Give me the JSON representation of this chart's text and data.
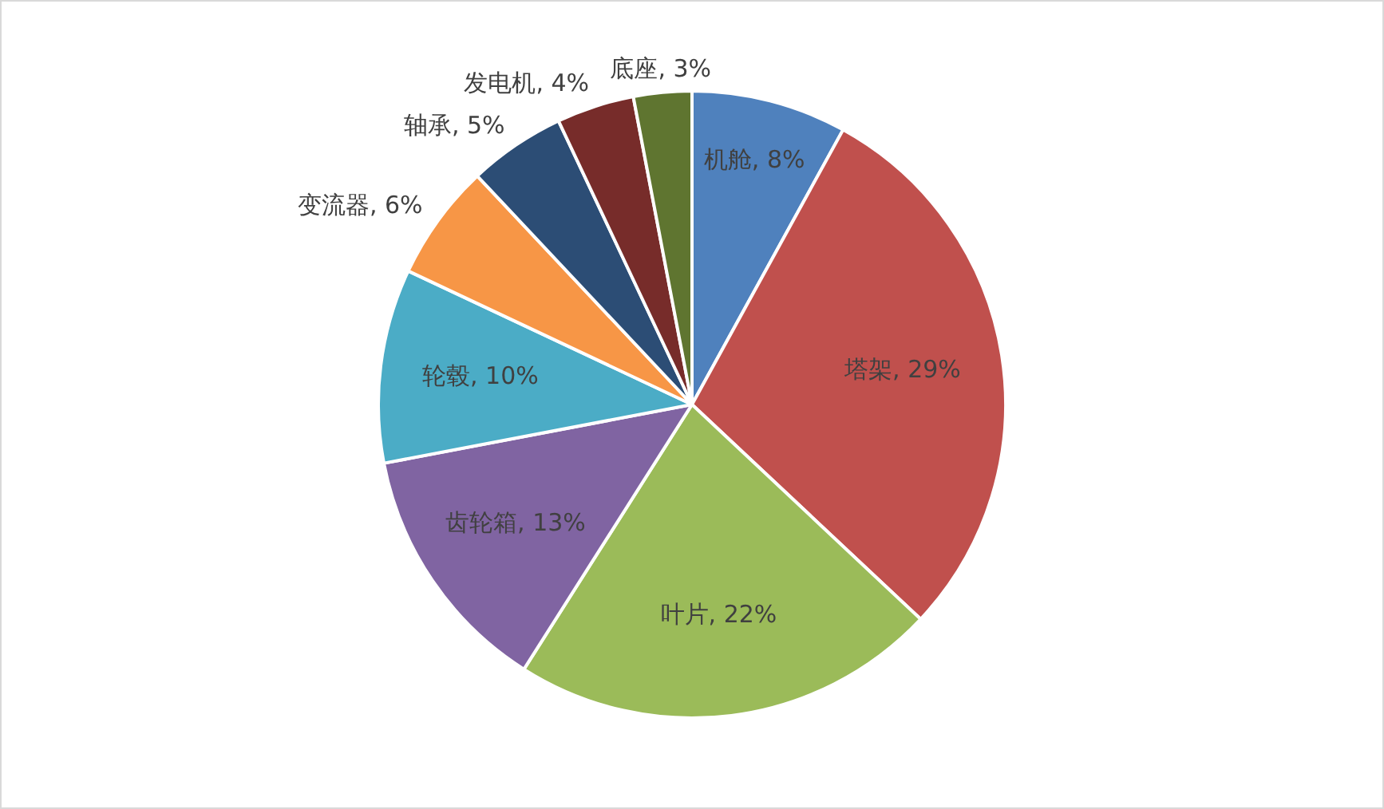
{
  "chart_data": {
    "type": "pie",
    "categories": [
      "机舱",
      "塔架",
      "叶片",
      "齿轮箱",
      "轮毂",
      "变流器",
      "轴承",
      "发电机",
      "底座"
    ],
    "values": [
      8,
      29,
      22,
      13,
      10,
      6,
      5,
      4,
      3
    ],
    "value_labels": [
      "8%",
      "29%",
      "22%",
      "13%",
      "10%",
      "6%",
      "5%",
      "4%",
      "3%"
    ],
    "colors": [
      "#4f81bd",
      "#c0504d",
      "#9bbb59",
      "#8064a2",
      "#4bacc6",
      "#f79646",
      "#2c4d75",
      "#772c2a",
      "#5f7530"
    ],
    "legend": false
  }
}
